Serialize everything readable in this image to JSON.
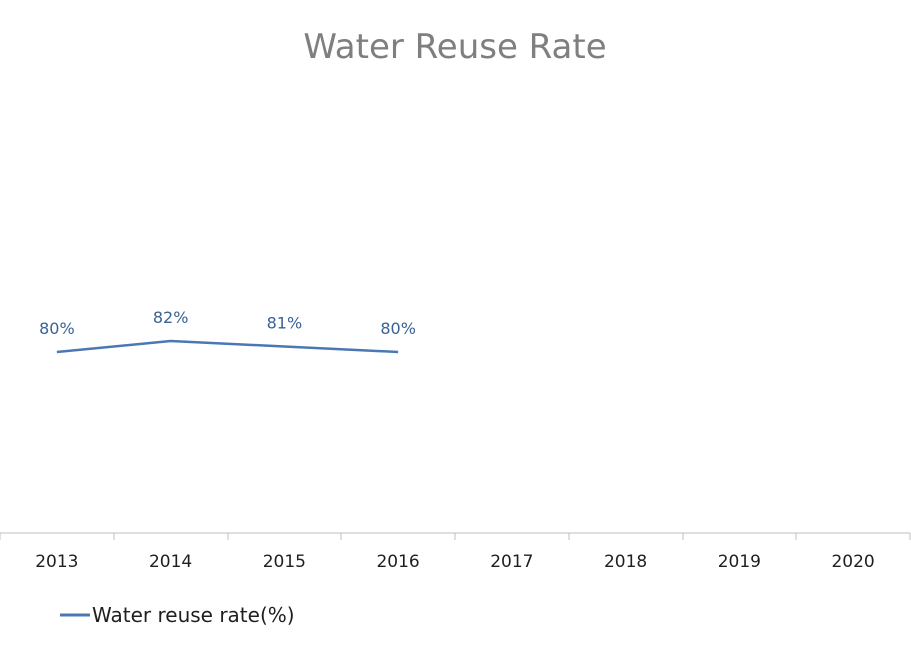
{
  "chart_data": {
    "type": "line",
    "title": "Water Reuse Rate",
    "categories": [
      "2013",
      "2014",
      "2015",
      "2016",
      "2017",
      "2018",
      "2019",
      "2020"
    ],
    "series": [
      {
        "name": "Water reuse rate(%)",
        "values": [
          80,
          82,
          81,
          80,
          null,
          null,
          null,
          null
        ],
        "data_labels": [
          "80%",
          "82%",
          "81%",
          "80%",
          "",
          "",
          "",
          ""
        ],
        "color": "#4a78b4"
      }
    ],
    "xlabel": "",
    "ylabel": "",
    "ylim": [
      0,
      100
    ],
    "grid": false,
    "legend_position": "bottom-left"
  }
}
